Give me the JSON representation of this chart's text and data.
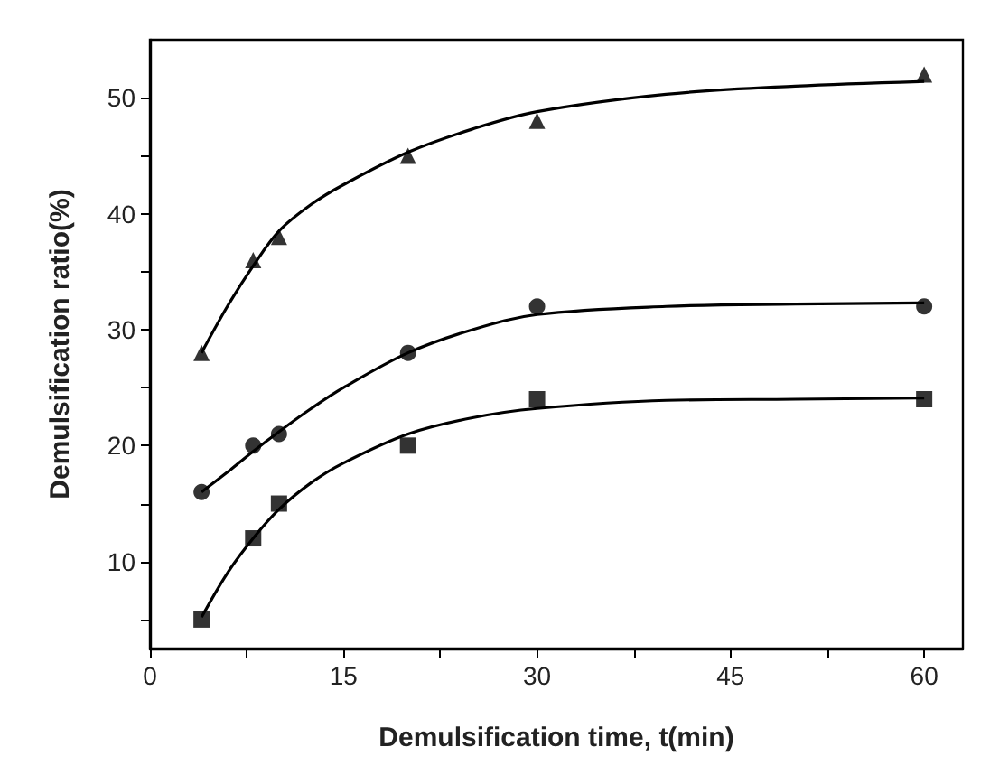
{
  "chart_data": {
    "type": "scatter",
    "xlabel": "Demulsification time, t(min)",
    "ylabel": "Demulsification ratio(%)",
    "xlim": [
      0,
      63
    ],
    "ylim": [
      2.5,
      55
    ],
    "xticks": [
      0,
      {
        "value": 7.5,
        "label": null
      },
      15,
      {
        "value": 22.5,
        "label": null
      },
      30,
      {
        "value": 37.5,
        "label": null
      },
      45,
      {
        "value": 52.5,
        "label": null
      },
      60
    ],
    "yticks": [
      {
        "value": 5,
        "label": null
      },
      10,
      {
        "value": 15,
        "label": null
      },
      20,
      {
        "value": 25,
        "label": null
      },
      30,
      {
        "value": 35,
        "label": null
      },
      40,
      {
        "value": 45,
        "label": null
      },
      50
    ],
    "series": [
      {
        "marker": "triangle",
        "color": "#000000",
        "x": [
          4,
          8,
          10,
          20,
          30,
          60
        ],
        "values": [
          28,
          36,
          38,
          45,
          48,
          52
        ]
      },
      {
        "marker": "circle",
        "color": "#000000",
        "x": [
          4,
          8,
          10,
          20,
          30,
          60
        ],
        "values": [
          16,
          20,
          21,
          28,
          32,
          32
        ]
      },
      {
        "marker": "square",
        "color": "#000000",
        "x": [
          4,
          8,
          10,
          20,
          30,
          60
        ],
        "values": [
          5,
          12,
          15,
          20,
          24,
          24
        ]
      },
      {
        "type": "line",
        "marker": "none",
        "color": "#000000",
        "x": [
          4,
          6,
          8,
          10,
          12.5,
          15,
          20,
          25,
          30,
          40,
          50,
          60
        ],
        "values": [
          28,
          32,
          35.5,
          38.5,
          40.8,
          42.5,
          45.3,
          47.3,
          48.8,
          50.3,
          51,
          51.4
        ]
      },
      {
        "type": "line",
        "marker": "none",
        "color": "#000000",
        "x": [
          4,
          6,
          8,
          10,
          12.5,
          15,
          20,
          25,
          30,
          40,
          50,
          60
        ],
        "values": [
          16,
          17.7,
          19.5,
          21.2,
          23.2,
          25,
          28,
          30,
          31.3,
          32,
          32.2,
          32.3
        ]
      },
      {
        "type": "line",
        "marker": "none",
        "color": "#000000",
        "x": [
          4,
          6,
          8,
          10,
          12.5,
          15,
          20,
          25,
          30,
          40,
          50,
          60
        ],
        "values": [
          5.2,
          9,
          12,
          14.5,
          16.8,
          18.5,
          21,
          22.4,
          23.2,
          23.9,
          24,
          24.1
        ]
      }
    ]
  }
}
